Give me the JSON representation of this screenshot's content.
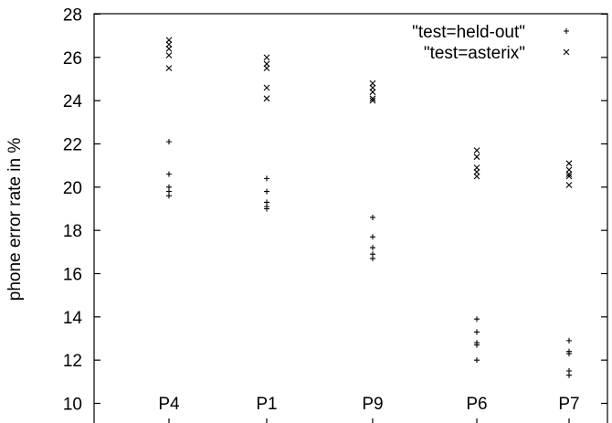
{
  "chart_data": {
    "type": "scatter",
    "title": "",
    "xlabel": "",
    "ylabel": "phone error rate in %",
    "categories": [
      "P4",
      "P1",
      "P9",
      "P6",
      "P7"
    ],
    "ylim": [
      10,
      28
    ],
    "yticks": [
      10,
      12,
      14,
      16,
      18,
      20,
      22,
      24,
      26,
      28
    ],
    "grid": false,
    "legend_position": "top-right",
    "series": [
      {
        "name": "\"test=held-out\"",
        "marker": "plus",
        "values": [
          [
            22.1,
            20.6,
            20.0,
            19.8,
            19.6
          ],
          [
            20.4,
            19.8,
            19.3,
            19.1,
            19.0
          ],
          [
            18.6,
            17.7,
            17.2,
            16.9,
            16.7
          ],
          [
            13.9,
            13.3,
            12.8,
            12.7,
            12.0
          ],
          [
            12.9,
            12.4,
            12.3,
            11.5,
            11.3
          ]
        ]
      },
      {
        "name": "\"test=asterix\"",
        "marker": "cross",
        "values": [
          [
            26.8,
            26.6,
            26.4,
            26.1,
            25.5
          ],
          [
            26.0,
            25.7,
            25.5,
            24.6,
            24.1
          ],
          [
            24.8,
            24.6,
            24.4,
            24.1,
            24.0
          ],
          [
            21.7,
            21.4,
            20.9,
            20.7,
            20.5
          ],
          [
            21.1,
            20.8,
            20.6,
            20.5,
            20.1
          ]
        ]
      }
    ]
  }
}
